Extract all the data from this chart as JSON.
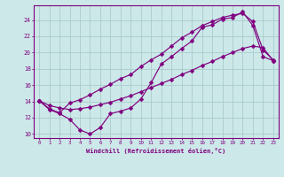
{
  "xlabel": "Windchill (Refroidissement éolien,°C)",
  "bg_color": "#cce8e8",
  "line_color": "#800080",
  "grid_color": "#aacccc",
  "xtick_labels": [
    "0",
    "1",
    "2",
    "3",
    "4",
    "5",
    "6",
    "7",
    "8",
    "9",
    "10",
    "11",
    "12",
    "13",
    "14",
    "15",
    "16",
    "17",
    "18",
    "19",
    "20",
    "21",
    "22",
    "23"
  ],
  "ytick_values": [
    10,
    12,
    14,
    16,
    18,
    20,
    22,
    24
  ],
  "xlim": [
    -0.5,
    23.5
  ],
  "ylim": [
    9.5,
    25.8
  ],
  "line1_x": [
    0,
    1,
    2,
    3,
    4,
    5,
    6,
    7,
    8,
    9,
    10,
    11,
    12,
    13,
    14,
    15,
    16,
    17,
    18,
    19,
    20,
    21,
    22,
    23
  ],
  "line1_y": [
    14.1,
    13.0,
    12.5,
    11.8,
    10.5,
    10.0,
    10.8,
    12.5,
    12.8,
    13.2,
    14.3,
    16.3,
    18.6,
    19.5,
    20.5,
    21.4,
    23.1,
    23.4,
    24.1,
    24.3,
    25.0,
    23.3,
    19.5,
    19.0
  ],
  "line2_x": [
    0,
    1,
    2,
    3,
    4,
    5,
    6,
    7,
    8,
    9,
    10,
    11,
    12,
    13,
    14,
    15,
    16,
    17,
    18,
    19,
    20,
    21,
    22,
    23
  ],
  "line2_y": [
    14.1,
    13.1,
    12.6,
    13.8,
    14.2,
    14.8,
    15.5,
    16.1,
    16.8,
    17.3,
    18.3,
    19.1,
    19.8,
    20.8,
    21.8,
    22.5,
    23.3,
    23.8,
    24.3,
    24.6,
    24.8,
    23.8,
    20.3,
    19.1
  ],
  "line3_x": [
    0,
    1,
    2,
    3,
    4,
    5,
    6,
    7,
    8,
    9,
    10,
    11,
    12,
    13,
    14,
    15,
    16,
    17,
    18,
    19,
    20,
    21,
    22,
    23
  ],
  "line3_y": [
    14.1,
    13.5,
    13.2,
    13.0,
    13.1,
    13.3,
    13.6,
    13.9,
    14.3,
    14.7,
    15.2,
    15.7,
    16.2,
    16.7,
    17.3,
    17.8,
    18.4,
    18.9,
    19.5,
    20.0,
    20.5,
    20.8,
    20.6,
    19.0
  ]
}
